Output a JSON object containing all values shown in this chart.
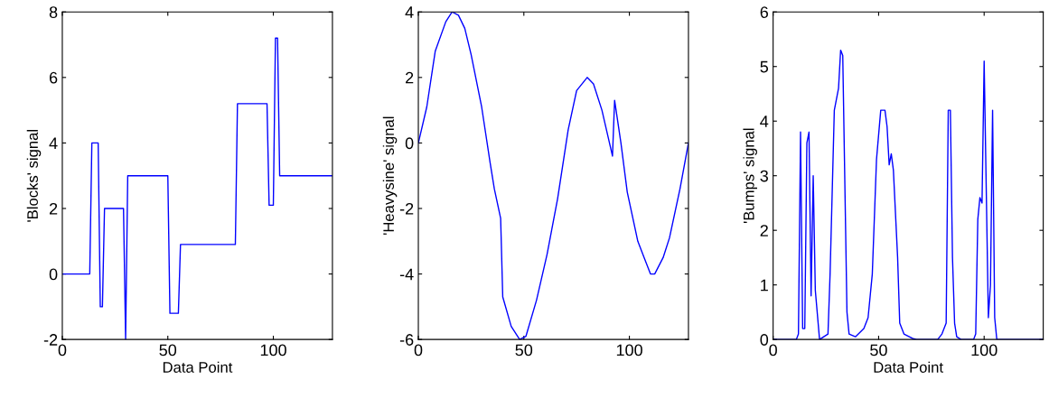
{
  "chart_data": [
    {
      "type": "line",
      "xlabel": "Data Point",
      "ylabel": "'Blocks' signal",
      "xlim": [
        0,
        128
      ],
      "xticks": [
        0,
        50,
        100
      ],
      "ylim": [
        -2,
        8
      ],
      "yticks": [
        -2,
        0,
        2,
        4,
        6,
        8
      ],
      "series": [
        {
          "color": "#0000ff",
          "x": [
            0,
            13,
            14,
            17,
            18,
            19,
            20,
            29,
            30,
            31,
            50,
            51,
            55,
            56,
            82,
            83,
            97,
            98,
            100,
            101,
            102,
            103,
            128
          ],
          "values": [
            0,
            0,
            4,
            4,
            -1,
            -1,
            2,
            2,
            -2,
            3,
            3,
            -1.2,
            -1.2,
            0.9,
            0.9,
            5.2,
            5.2,
            2.1,
            2.1,
            7.2,
            7.2,
            3,
            3
          ]
        }
      ]
    },
    {
      "type": "line",
      "ylabel": "'Heavysine' signal",
      "xlim": [
        0,
        128
      ],
      "xticks": [
        0,
        50,
        100
      ],
      "ylim": [
        -6,
        4
      ],
      "yticks": [
        -6,
        -4,
        -2,
        0,
        2,
        4
      ],
      "series": [
        {
          "color": "#0000ff",
          "x": [
            0,
            4,
            8,
            13,
            16,
            19,
            22,
            25,
            30,
            34,
            36,
            39,
            40,
            44,
            48,
            51,
            56,
            61,
            66,
            71,
            75,
            80,
            83,
            87,
            92,
            93,
            96,
            99,
            104,
            107,
            110,
            112,
            116,
            119,
            124,
            128
          ],
          "values": [
            0,
            1.1,
            2.8,
            3.7,
            4.0,
            3.9,
            3.5,
            2.7,
            1.1,
            -0.6,
            -1.4,
            -2.3,
            -4.7,
            -5.6,
            -6.0,
            -5.9,
            -4.8,
            -3.4,
            -1.7,
            0.4,
            1.6,
            2.0,
            1.8,
            1.0,
            -0.4,
            1.3,
            0.0,
            -1.5,
            -3.0,
            -3.5,
            -4.0,
            -4.0,
            -3.5,
            -2.9,
            -1.4,
            0
          ]
        }
      ]
    },
    {
      "type": "line",
      "xlabel": "Data Point",
      "ylabel": "'Bumps' signal",
      "xlim": [
        0,
        128
      ],
      "xticks": [
        0,
        50,
        100
      ],
      "ylim": [
        0,
        6
      ],
      "yticks": [
        0,
        1,
        2,
        3,
        4,
        5,
        6
      ],
      "series": [
        {
          "color": "#0000ff",
          "x": [
            0,
            11,
            12,
            13,
            14,
            15,
            16,
            17,
            18,
            19,
            20,
            22,
            26,
            27,
            29,
            31,
            32,
            33,
            35,
            36,
            39,
            43,
            45,
            47,
            49,
            51,
            53,
            54,
            55,
            56,
            57,
            59,
            60,
            62,
            66,
            68,
            78,
            80,
            82,
            83,
            84,
            85,
            86,
            87,
            89,
            95,
            96,
            97,
            98,
            99,
            100,
            102,
            103,
            104,
            105,
            106,
            128
          ],
          "values": [
            0,
            0,
            0.1,
            3.8,
            0.2,
            0.2,
            3.6,
            3.8,
            0.8,
            3.0,
            0.9,
            0,
            0.1,
            1.2,
            4.2,
            4.6,
            5.3,
            5.2,
            0.5,
            0.1,
            0.05,
            0.2,
            0.4,
            1.2,
            3.3,
            4.2,
            4.2,
            3.9,
            3.2,
            3.4,
            3.1,
            1.5,
            0.3,
            0.1,
            0.02,
            0,
            0,
            0.1,
            0.3,
            4.2,
            4.2,
            1.5,
            0.3,
            0.05,
            0,
            0,
            0.1,
            2.2,
            2.6,
            2.5,
            5.1,
            0.4,
            1.0,
            4.2,
            0.4,
            0,
            0
          ]
        }
      ]
    }
  ]
}
